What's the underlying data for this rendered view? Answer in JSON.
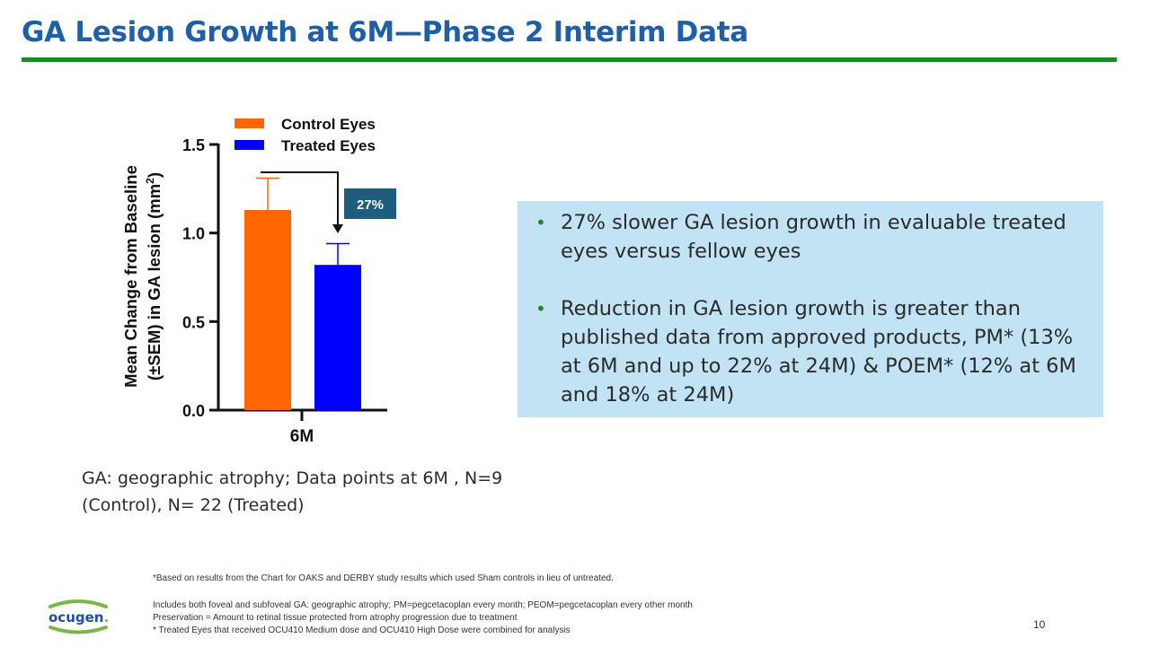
{
  "slide": {
    "title": "GA Lesion Growth at 6M—Phase 2 Interim Data",
    "page_number": "10"
  },
  "chart_data": {
    "type": "bar",
    "categories": [
      "6M"
    ],
    "series": [
      {
        "name": "Control Eyes",
        "values": [
          1.13
        ],
        "error": [
          0.18
        ],
        "color": "#ff6600"
      },
      {
        "name": "Treated Eyes",
        "values": [
          0.82
        ],
        "error": [
          0.12
        ],
        "color": "#0000ff"
      }
    ],
    "ylabel_line1": "Mean Change from Baseline",
    "ylabel_line2": "(±SEM) in GA lesion (mm",
    "ylabel_sup": "2",
    "ylabel_close": ")",
    "ylim": [
      0,
      1.5
    ],
    "yticks": [
      0.0,
      0.5,
      1.0,
      1.5
    ],
    "ytick_labels": [
      "0.0",
      "0.5",
      "1.0",
      "1.5"
    ],
    "legend_position": "top",
    "annotation": {
      "label": "27%",
      "color": "#1d5d7d"
    }
  },
  "callout": {
    "bullets": [
      "27% slower GA lesion growth in evaluable treated eyes versus fellow eyes",
      "Reduction in GA lesion growth is greater than published data from approved products, PM* (13% at 6M and up to 22% at 24M) & POEM* (12% at 6M and 18% at 24M)"
    ],
    "bullet_glyph": "•"
  },
  "footnote": {
    "main": "GA: geographic atrophy; Data points at 6M , N=9 (Control), N= 22 (Treated)",
    "fine_1": "*Based on results from the Chart for OAKS and DERBY study results which used Sham controls in lieu of untreated.",
    "fine_2": "Includes both foveal and subfoveal GA: geographic atrophy; PM=pegcetacoplan every month; PEOM=pegcetacoplan every other month",
    "fine_3": "Preservation = Amount to retinal tissue protected from atrophy progression due to treatment",
    "fine_4": "* Treated Eyes that received OCU410 Medium dose and OCU410 High Dose were combined for analysis"
  },
  "logo": {
    "text": "ocugen",
    "dot_glyph": "."
  },
  "colors": {
    "title": "#1f5fa8",
    "rule": "#1e8a24",
    "callout_bg": "#c1e3f3",
    "logo_green": "#7ab648",
    "logo_blue": "#1f4e9c"
  }
}
